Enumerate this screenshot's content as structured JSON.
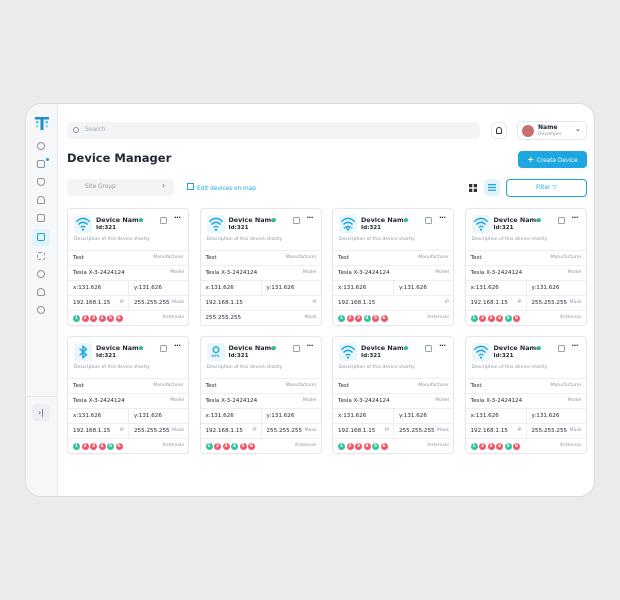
{
  "header": {
    "search_placeholder": "Search",
    "user": {
      "name": "Name",
      "role": "Developer"
    }
  },
  "toolbar": {
    "title": "Device Manager",
    "create_button": "Create Device",
    "site_group": "Site Group",
    "map_link": "Edit devices on map",
    "filter": "Filter"
  },
  "cards": [
    {
      "icon": "wifi",
      "name": "Device Name",
      "id": "Id:321",
      "description": "Description of this device shortly",
      "rows": [
        {
          "cells": [
            {
              "text": "Test",
              "label": "Manufacturer"
            }
          ]
        },
        {
          "cells": [
            {
              "text": "Tesla X-3-2424124",
              "label": "Model"
            }
          ]
        },
        {
          "cells": [
            {
              "text": "x:131.626"
            },
            {
              "text": "y:131.626"
            }
          ]
        },
        {
          "cells": [
            {
              "text": "192.168.1.15",
              "label": "IP"
            },
            {
              "text": "255.255.255",
              "label": "Mask"
            }
          ]
        },
        {
          "antennas": [
            {
              "n": "1",
              "color": "#2fc39e"
            },
            {
              "n": "2",
              "color": "#f0566a"
            },
            {
              "n": "3",
              "color": "#f0566a"
            },
            {
              "n": "4",
              "color": "#f0566a"
            },
            {
              "n": "5",
              "color": "#f0566a"
            },
            {
              "n": "6",
              "color": "#f0566a"
            }
          ],
          "label": "Antennas"
        }
      ]
    },
    {
      "icon": "wifi",
      "name": "Device Name",
      "id": "Id:321",
      "description": "Description of this device shortly",
      "rows": [
        {
          "cells": [
            {
              "text": "Test",
              "label": "Manufacturer"
            }
          ]
        },
        {
          "cells": [
            {
              "text": "Tesla X-3-2424124",
              "label": "Model"
            }
          ]
        },
        {
          "cells": [
            {
              "text": "x:131.626"
            },
            {
              "text": "y:131.626"
            }
          ]
        },
        {
          "cells": [
            {
              "text": "192.168.1.15",
              "label": "IP"
            }
          ]
        },
        {
          "cells": [
            {
              "text": "255.255.255",
              "label": "Mask"
            }
          ]
        }
      ]
    },
    {
      "icon": "wifi",
      "icon_text": "WiFi",
      "name": "Device Name",
      "id": "Id:321",
      "description": "Description of this device shortly",
      "rows": [
        {
          "cells": [
            {
              "text": "Test",
              "label": "Manufacturer"
            }
          ]
        },
        {
          "cells": [
            {
              "text": "Tesla X-3-2424124",
              "label": "Model"
            }
          ]
        },
        {
          "cells": [
            {
              "text": "x:131.626"
            },
            {
              "text": "y:131.626"
            }
          ]
        },
        {
          "cells": [
            {
              "text": "192.168.1.15",
              "label": "IP"
            }
          ]
        },
        {
          "antennas": [
            {
              "n": "1",
              "color": "#2fc39e"
            },
            {
              "n": "2",
              "color": "#f0566a"
            },
            {
              "n": "3",
              "color": "#f0566a"
            },
            {
              "n": "4",
              "color": "#2fc39e"
            },
            {
              "n": "5",
              "color": "#f0566a"
            },
            {
              "n": "6",
              "color": "#f0566a"
            }
          ],
          "label": "Antennas"
        }
      ]
    },
    {
      "icon": "wifi",
      "name": "Device Name",
      "id": "Id:321",
      "description": "Description of this device shortly",
      "rows": [
        {
          "cells": [
            {
              "text": "Test",
              "label": "Manufacturer"
            }
          ]
        },
        {
          "cells": [
            {
              "text": "Tesla X-3-2424124",
              "label": "Model"
            }
          ]
        },
        {
          "cells": [
            {
              "text": "x:131.626"
            },
            {
              "text": "y:131.626"
            }
          ]
        },
        {
          "cells": [
            {
              "text": "192.168.1.15",
              "label": "IP"
            },
            {
              "text": "255.255.255",
              "label": "Mask"
            }
          ]
        },
        {
          "antennas": [
            {
              "n": "1",
              "color": "#2fc39e"
            },
            {
              "n": "2",
              "color": "#f0566a"
            },
            {
              "n": "3",
              "color": "#f0566a"
            },
            {
              "n": "4",
              "color": "#f0566a"
            },
            {
              "n": "5",
              "color": "#2fc39e"
            },
            {
              "n": "6",
              "color": "#f0566a"
            }
          ],
          "label": "Antennas"
        }
      ]
    },
    {
      "icon": "bluetooth",
      "name": "Device Name",
      "id": "Id:321",
      "description": "Description of this device shortly",
      "rows": [
        {
          "cells": [
            {
              "text": "Test",
              "label": "Manufacturer"
            }
          ]
        },
        {
          "cells": [
            {
              "text": "Tesla X-3-2424124",
              "label": "Model"
            }
          ]
        },
        {
          "cells": [
            {
              "text": "x:131.626"
            },
            {
              "text": "y:131.626"
            }
          ]
        },
        {
          "cells": [
            {
              "text": "192.168.1.15",
              "label": "IP"
            },
            {
              "text": "255.255.255",
              "label": "Mask"
            }
          ]
        },
        {
          "antennas": [
            {
              "n": "1",
              "color": "#2fc39e"
            },
            {
              "n": "2",
              "color": "#f0566a"
            },
            {
              "n": "3",
              "color": "#f0566a"
            },
            {
              "n": "4",
              "color": "#f0566a"
            },
            {
              "n": "5",
              "color": "#2fc39e"
            },
            {
              "n": "6",
              "color": "#f0566a"
            }
          ],
          "label": "Antennas"
        }
      ]
    },
    {
      "icon": "gps",
      "icon_text": "GPS",
      "name": "Device Name",
      "id": "Id:321",
      "description": "Description of this device shortly",
      "rows": [
        {
          "cells": [
            {
              "text": "Test",
              "label": "Manufacturer"
            }
          ]
        },
        {
          "cells": [
            {
              "text": "Tesla X-3-2424124",
              "label": "Model"
            }
          ]
        },
        {
          "cells": [
            {
              "text": "x:131.626"
            },
            {
              "text": "y:131.626"
            }
          ]
        },
        {
          "cells": [
            {
              "text": "192.168.1.15",
              "label": "IP"
            },
            {
              "text": "255.255.255",
              "label": "Mask"
            }
          ]
        },
        {
          "antennas": [
            {
              "n": "1",
              "color": "#2fc39e"
            },
            {
              "n": "2",
              "color": "#f0566a"
            },
            {
              "n": "3",
              "color": "#f0566a"
            },
            {
              "n": "4",
              "color": "#2fc39e"
            },
            {
              "n": "5",
              "color": "#f0566a"
            },
            {
              "n": "6",
              "color": "#f0566a"
            }
          ],
          "label": "Antennas"
        }
      ]
    },
    {
      "icon": "wifi",
      "name": "Device Name",
      "id": "Id:321",
      "description": "Description of this device shortly",
      "rows": [
        {
          "cells": [
            {
              "text": "Test",
              "label": "Manufacturer"
            }
          ]
        },
        {
          "cells": [
            {
              "text": "Tesla X-3-2424124",
              "label": "Model"
            }
          ]
        },
        {
          "cells": [
            {
              "text": "x:131.626"
            },
            {
              "text": "y:131.626"
            }
          ]
        },
        {
          "cells": [
            {
              "text": "192.168.1.15",
              "label": "IP"
            },
            {
              "text": "255.255.255",
              "label": "Mask"
            }
          ]
        },
        {
          "antennas": [
            {
              "n": "1",
              "color": "#2fc39e"
            },
            {
              "n": "2",
              "color": "#f0566a"
            },
            {
              "n": "3",
              "color": "#f0566a"
            },
            {
              "n": "4",
              "color": "#f0566a"
            },
            {
              "n": "5",
              "color": "#2fc39e"
            },
            {
              "n": "6",
              "color": "#f0566a"
            }
          ],
          "label": "Antennas"
        }
      ]
    },
    {
      "icon": "wifi",
      "name": "Device Name",
      "id": "Id:321",
      "description": "Description of this device shortly",
      "rows": [
        {
          "cells": [
            {
              "text": "Test",
              "label": "Manufacturer"
            }
          ]
        },
        {
          "cells": [
            {
              "text": "Tesla X-3-2424124",
              "label": "Model"
            }
          ]
        },
        {
          "cells": [
            {
              "text": "x:131.626"
            },
            {
              "text": "y:131.626"
            }
          ]
        },
        {
          "cells": [
            {
              "text": "192.168.1.15",
              "label": "IP"
            },
            {
              "text": "255.255.255",
              "label": "Mask"
            }
          ]
        },
        {
          "antennas": [
            {
              "n": "1",
              "color": "#2fc39e"
            },
            {
              "n": "2",
              "color": "#f0566a"
            },
            {
              "n": "3",
              "color": "#f0566a"
            },
            {
              "n": "4",
              "color": "#f0566a"
            },
            {
              "n": "5",
              "color": "#2fc39e"
            },
            {
              "n": "6",
              "color": "#f0566a"
            }
          ],
          "label": "Antennas"
        }
      ]
    }
  ]
}
